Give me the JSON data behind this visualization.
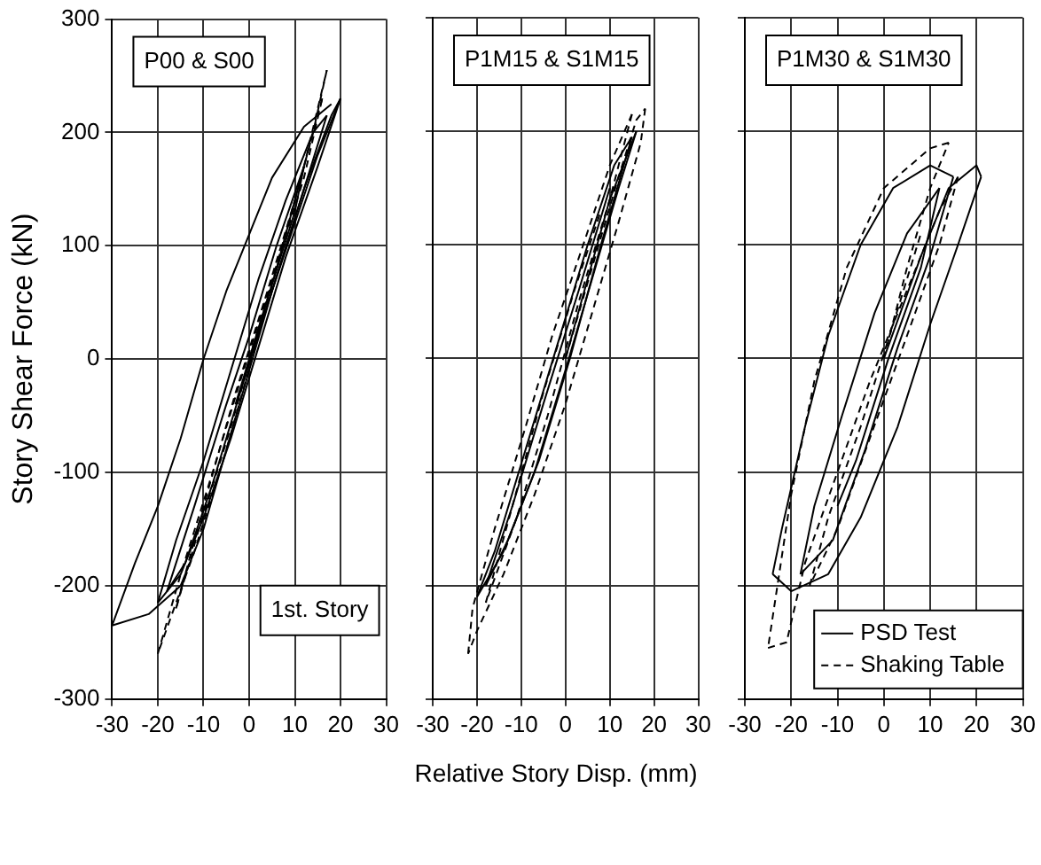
{
  "chart_data": [
    {
      "type": "line",
      "ylabel": "Story Shear Force (kN)",
      "annotations": [
        "P00 & S00",
        "1st. Story"
      ],
      "xlim": [
        -30,
        30
      ],
      "xticks": [
        -30,
        -20,
        -10,
        0,
        10,
        20,
        30
      ],
      "ylim": [
        -300,
        300
      ],
      "yticks": [
        -300,
        -200,
        -100,
        0,
        100,
        200,
        300
      ],
      "grid": true,
      "marker": "none",
      "series": [
        {
          "color": "#000000",
          "line_style": "solid",
          "x": [
            0,
            5,
            10,
            15,
            20
          ],
          "values": [
            0,
            60,
            120,
            180,
            230
          ]
        },
        {
          "color": "#000000",
          "line_style": "solid",
          "x": [
            20,
            18,
            12,
            5,
            0,
            -5,
            -10,
            -15,
            -22,
            -30
          ],
          "values": [
            230,
            215,
            150,
            60,
            -10,
            -80,
            -150,
            -200,
            -225,
            -235
          ]
        },
        {
          "color": "#000000",
          "line_style": "solid",
          "x": [
            -30,
            -25,
            -20,
            -15,
            -10,
            -5,
            0,
            5,
            12,
            18
          ],
          "values": [
            -235,
            -180,
            -130,
            -70,
            0,
            60,
            110,
            160,
            205,
            225
          ]
        },
        {
          "color": "#000000",
          "line_style": "solid",
          "x": [
            20,
            15,
            8,
            2,
            -4,
            -10,
            -15,
            -20
          ],
          "values": [
            230,
            170,
            90,
            10,
            -70,
            -140,
            -190,
            -215
          ]
        },
        {
          "color": "#000000",
          "line_style": "solid",
          "x": [
            -20,
            -16,
            -10,
            -4,
            2,
            8,
            14,
            17
          ],
          "values": [
            -215,
            -160,
            -90,
            -10,
            70,
            140,
            200,
            215
          ]
        },
        {
          "color": "#000000",
          "line_style": "solid",
          "x": [
            17,
            12,
            5,
            -2,
            -8,
            -14,
            -18
          ],
          "values": [
            215,
            150,
            60,
            -30,
            -110,
            -180,
            -205
          ]
        },
        {
          "color": "#000000",
          "line_style": "solid",
          "x": [
            -18,
            -12,
            -5,
            0,
            6,
            12
          ],
          "values": [
            -205,
            -130,
            -40,
            20,
            100,
            170
          ]
        },
        {
          "color": "#000000",
          "line_style": "solid",
          "x": [
            12,
            10,
            3,
            -3
          ],
          "values": [
            170,
            130,
            40,
            -40
          ]
        },
        {
          "color": "#000000",
          "line_style": "dashed",
          "x": [
            0,
            6,
            12,
            17
          ],
          "values": [
            0,
            80,
            170,
            255
          ]
        },
        {
          "color": "#000000",
          "line_style": "dashed",
          "x": [
            17,
            14,
            8,
            2,
            -5,
            -12,
            -20
          ],
          "values": [
            255,
            200,
            110,
            20,
            -80,
            -170,
            -260
          ]
        },
        {
          "color": "#000000",
          "line_style": "dashed",
          "x": [
            -20,
            -15,
            -8,
            -2,
            5,
            12,
            16
          ],
          "values": [
            -260,
            -190,
            -100,
            -20,
            70,
            160,
            230
          ]
        },
        {
          "color": "#000000",
          "line_style": "dashed",
          "x": [
            16,
            10,
            3,
            -4,
            -11,
            -16
          ],
          "values": [
            230,
            140,
            40,
            -60,
            -150,
            -220
          ]
        },
        {
          "color": "#000000",
          "line_style": "dashed",
          "x": [
            -16,
            -10,
            -3,
            4,
            10
          ],
          "values": [
            -220,
            -130,
            -30,
            60,
            140
          ]
        }
      ]
    },
    {
      "type": "line",
      "xlabel": "Relative Story Disp. (mm)",
      "annotations": [
        "P1M15 & S1M15"
      ],
      "xlim": [
        -30,
        30
      ],
      "xticks": [
        -30,
        -20,
        -10,
        0,
        10,
        20,
        30
      ],
      "ylim": [
        -300,
        300
      ],
      "yticks": [
        -300,
        -200,
        -100,
        0,
        100,
        200,
        300
      ],
      "grid": true,
      "marker": "none",
      "tick_labels": "x",
      "series": [
        {
          "color": "#000000",
          "line_style": "solid",
          "x": [
            0,
            5,
            10,
            16
          ],
          "values": [
            0,
            70,
            140,
            200
          ]
        },
        {
          "color": "#000000",
          "line_style": "solid",
          "x": [
            16,
            12,
            6,
            0,
            -7,
            -14,
            -20
          ],
          "values": [
            200,
            150,
            70,
            -10,
            -100,
            -170,
            -210
          ]
        },
        {
          "color": "#000000",
          "line_style": "solid",
          "x": [
            -20,
            -16,
            -9,
            -2,
            5,
            11,
            15
          ],
          "values": [
            -210,
            -170,
            -80,
            10,
            100,
            170,
            195
          ]
        },
        {
          "color": "#000000",
          "line_style": "solid",
          "x": [
            15,
            8,
            1,
            -6,
            -13,
            -18
          ],
          "values": [
            195,
            100,
            0,
            -90,
            -160,
            -200
          ]
        },
        {
          "color": "#000000",
          "line_style": "solid",
          "x": [
            -18,
            -12,
            -5,
            3,
            10
          ],
          "values": [
            -200,
            -130,
            -40,
            60,
            150
          ]
        },
        {
          "color": "#000000",
          "line_style": "dashed",
          "x": [
            0,
            6,
            12,
            16,
            18
          ],
          "values": [
            0,
            80,
            160,
            210,
            220
          ]
        },
        {
          "color": "#000000",
          "line_style": "dashed",
          "x": [
            18,
            17,
            12,
            6,
            0,
            -7,
            -14,
            -20,
            -22
          ],
          "values": [
            220,
            190,
            120,
            40,
            -40,
            -120,
            -190,
            -240,
            -260
          ]
        },
        {
          "color": "#000000",
          "line_style": "dashed",
          "x": [
            -22,
            -21,
            -16,
            -9,
            -3,
            4,
            10,
            15
          ],
          "values": [
            -260,
            -220,
            -150,
            -60,
            20,
            100,
            170,
            215
          ]
        },
        {
          "color": "#000000",
          "line_style": "dashed",
          "x": [
            15,
            10,
            3,
            -4,
            -11,
            -18
          ],
          "values": [
            215,
            140,
            50,
            -50,
            -140,
            -215
          ]
        },
        {
          "color": "#000000",
          "line_style": "dashed",
          "x": [
            -18,
            -12,
            -5,
            2,
            8
          ],
          "values": [
            -215,
            -130,
            -30,
            60,
            130
          ]
        }
      ]
    },
    {
      "type": "line",
      "annotations": [
        "P1M30 & S1M30"
      ],
      "xlim": [
        -30,
        30
      ],
      "xticks": [
        -30,
        -20,
        -10,
        0,
        10,
        20,
        30
      ],
      "ylim": [
        -300,
        300
      ],
      "yticks": [
        -300,
        -200,
        -100,
        0,
        100,
        200,
        300
      ],
      "grid": true,
      "marker": "none",
      "tick_labels": "x",
      "legend": "bottom right",
      "series": [
        {
          "name": "PSD Test",
          "color": "#000000",
          "line_style": "solid",
          "x": [
            0,
            8,
            14,
            20,
            21
          ],
          "values": [
            0,
            90,
            150,
            170,
            160
          ]
        },
        {
          "color": "#000000",
          "line_style": "solid",
          "x": [
            21,
            16,
            10,
            3,
            -5,
            -12,
            -20,
            -24
          ],
          "values": [
            160,
            100,
            30,
            -60,
            -140,
            -190,
            -205,
            -190
          ]
        },
        {
          "color": "#000000",
          "line_style": "solid",
          "x": [
            -24,
            -22,
            -17,
            -12,
            -5,
            2,
            10,
            15
          ],
          "values": [
            -190,
            -150,
            -60,
            20,
            100,
            150,
            170,
            160
          ]
        },
        {
          "color": "#000000",
          "line_style": "solid",
          "x": [
            15,
            10,
            3,
            -4,
            -11,
            -18
          ],
          "values": [
            160,
            90,
            10,
            -80,
            -160,
            -190
          ]
        },
        {
          "color": "#000000",
          "line_style": "solid",
          "x": [
            -18,
            -15,
            -9,
            -2,
            5,
            12
          ],
          "values": [
            -190,
            -130,
            -50,
            40,
            110,
            150
          ]
        },
        {
          "color": "#000000",
          "line_style": "solid",
          "x": [
            12,
            8,
            1,
            -6,
            -10
          ],
          "values": [
            150,
            80,
            0,
            -90,
            -130
          ]
        },
        {
          "name": "Shaking Table",
          "color": "#000000",
          "line_style": "dashed",
          "x": [
            0,
            5,
            10,
            14
          ],
          "values": [
            0,
            80,
            150,
            190
          ]
        },
        {
          "color": "#000000",
          "line_style": "dashed",
          "x": [
            14,
            10,
            0,
            -8,
            -15,
            -20,
            -25
          ],
          "values": [
            190,
            185,
            150,
            80,
            -20,
            -120,
            -255
          ]
        },
        {
          "color": "#000000",
          "line_style": "dashed",
          "x": [
            -25,
            -21,
            -17,
            -10,
            -3,
            5,
            12,
            16
          ],
          "values": [
            -255,
            -250,
            -180,
            -100,
            -20,
            60,
            130,
            160
          ]
        },
        {
          "color": "#000000",
          "line_style": "dashed",
          "x": [
            16,
            12,
            5,
            -3,
            -10,
            -16
          ],
          "values": [
            160,
            100,
            20,
            -70,
            -150,
            -200
          ]
        },
        {
          "color": "#000000",
          "line_style": "dashed",
          "x": [
            -16,
            -12,
            -5,
            2,
            8
          ],
          "values": [
            -200,
            -140,
            -60,
            30,
            110
          ]
        }
      ]
    }
  ]
}
